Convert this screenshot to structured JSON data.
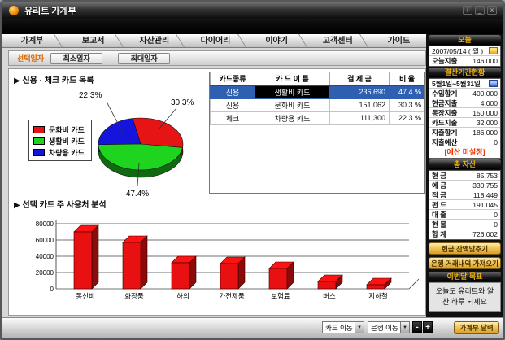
{
  "window": {
    "title": "유리트 가계부",
    "controls": {
      "info": "i",
      "minimize": "_",
      "close": "x"
    }
  },
  "tabs": [
    "가계부",
    "보고서",
    "자산관리",
    "다이어리",
    "이야기",
    "고객센터",
    "가이드"
  ],
  "filter_bar": {
    "label": "선택일자",
    "min_button": "최소일자",
    "separator": "-",
    "max_button": "최대일자"
  },
  "card_list": {
    "heading": "▶ 신용 · 체크 카드 목록",
    "table": {
      "columns": [
        "카드종류",
        "카 드 이 름",
        "결 제 금",
        "비 율"
      ],
      "rows": [
        {
          "type": "신용",
          "name": "생활비 카드",
          "amount": "236,690",
          "ratio": "47.4 %",
          "selected": true
        },
        {
          "type": "신용",
          "name": "문화비 카드",
          "amount": "151,062",
          "ratio": "30.3 %",
          "selected": false
        },
        {
          "type": "체크",
          "name": "차량용 카드",
          "amount": "111,300",
          "ratio": "22.3 %",
          "selected": false
        }
      ]
    }
  },
  "usage": {
    "heading": "▶ 선택 카드 주 사용처 분석"
  },
  "chart_data": [
    {
      "type": "pie",
      "labels": [
        "문화비 카드",
        "생활비 카드",
        "차량용 카드"
      ],
      "values": [
        30.3,
        47.4,
        22.3
      ],
      "unit": "%",
      "colors": [
        "#e61414",
        "#1fd41f",
        "#1414dc"
      ],
      "data_labels": [
        "30.3%",
        "47.4%",
        "22.3%"
      ],
      "legend_position": "left",
      "style": "3d"
    },
    {
      "type": "bar",
      "categories": [
        "통신비",
        "화장품",
        "하의",
        "가전제품",
        "보험료",
        "버스",
        "지하철"
      ],
      "values": [
        70000,
        57000,
        32000,
        31000,
        25000,
        9000,
        5000
      ],
      "ylim": [
        0,
        80000
      ],
      "yticks": [
        0,
        20000,
        40000,
        60000,
        80000
      ],
      "bar_color": "#e81010",
      "grid": true,
      "style": "3d"
    }
  ],
  "sidebar": {
    "today": {
      "header": "오늘",
      "date": "2007/05/14 ( 월 )",
      "expense_label": "오늘지출",
      "expense_value": "146,000"
    },
    "period": {
      "header": "결산기간현황",
      "range": "5월1일~5월31일",
      "rows": [
        [
          "수입합계",
          "400,000"
        ],
        [
          "현금지출",
          "4,000"
        ],
        [
          "통장지출",
          "150,000"
        ],
        [
          "카드지출",
          "32,000"
        ],
        [
          "지출합계",
          "186,000"
        ],
        [
          "지출예산",
          "0"
        ]
      ],
      "budget_notice": "[예산 미설정]"
    },
    "assets": {
      "header": "총 자산",
      "rows": [
        [
          "현 금",
          "85,753"
        ],
        [
          "예 금",
          "330,755"
        ],
        [
          "적 금",
          "118,449"
        ],
        [
          "펀 드",
          "191,045"
        ],
        [
          "대 출",
          "0"
        ],
        [
          "현 물",
          "0"
        ],
        [
          "합 계",
          "726,002"
        ]
      ]
    },
    "buttons": [
      "현금 잔액맞추기",
      "은행 거래내역 가져오기"
    ],
    "goal": {
      "header": "이번달 목표",
      "message": "오늘도 유리트와 알찬 하루 되세요"
    }
  },
  "bottom_bar": {
    "card_select": "카드 이동",
    "bank_select": "은행 이동",
    "minus_label": "-",
    "plus_label": "+",
    "calendar_button": "가계부 달력"
  },
  "colors": {
    "accent_gold": "#f2b100",
    "header_black": "#000000",
    "selected_row": "#2e5fb0",
    "budget_warning": "#ee3300",
    "filter_label_orange": "#d96a00"
  }
}
